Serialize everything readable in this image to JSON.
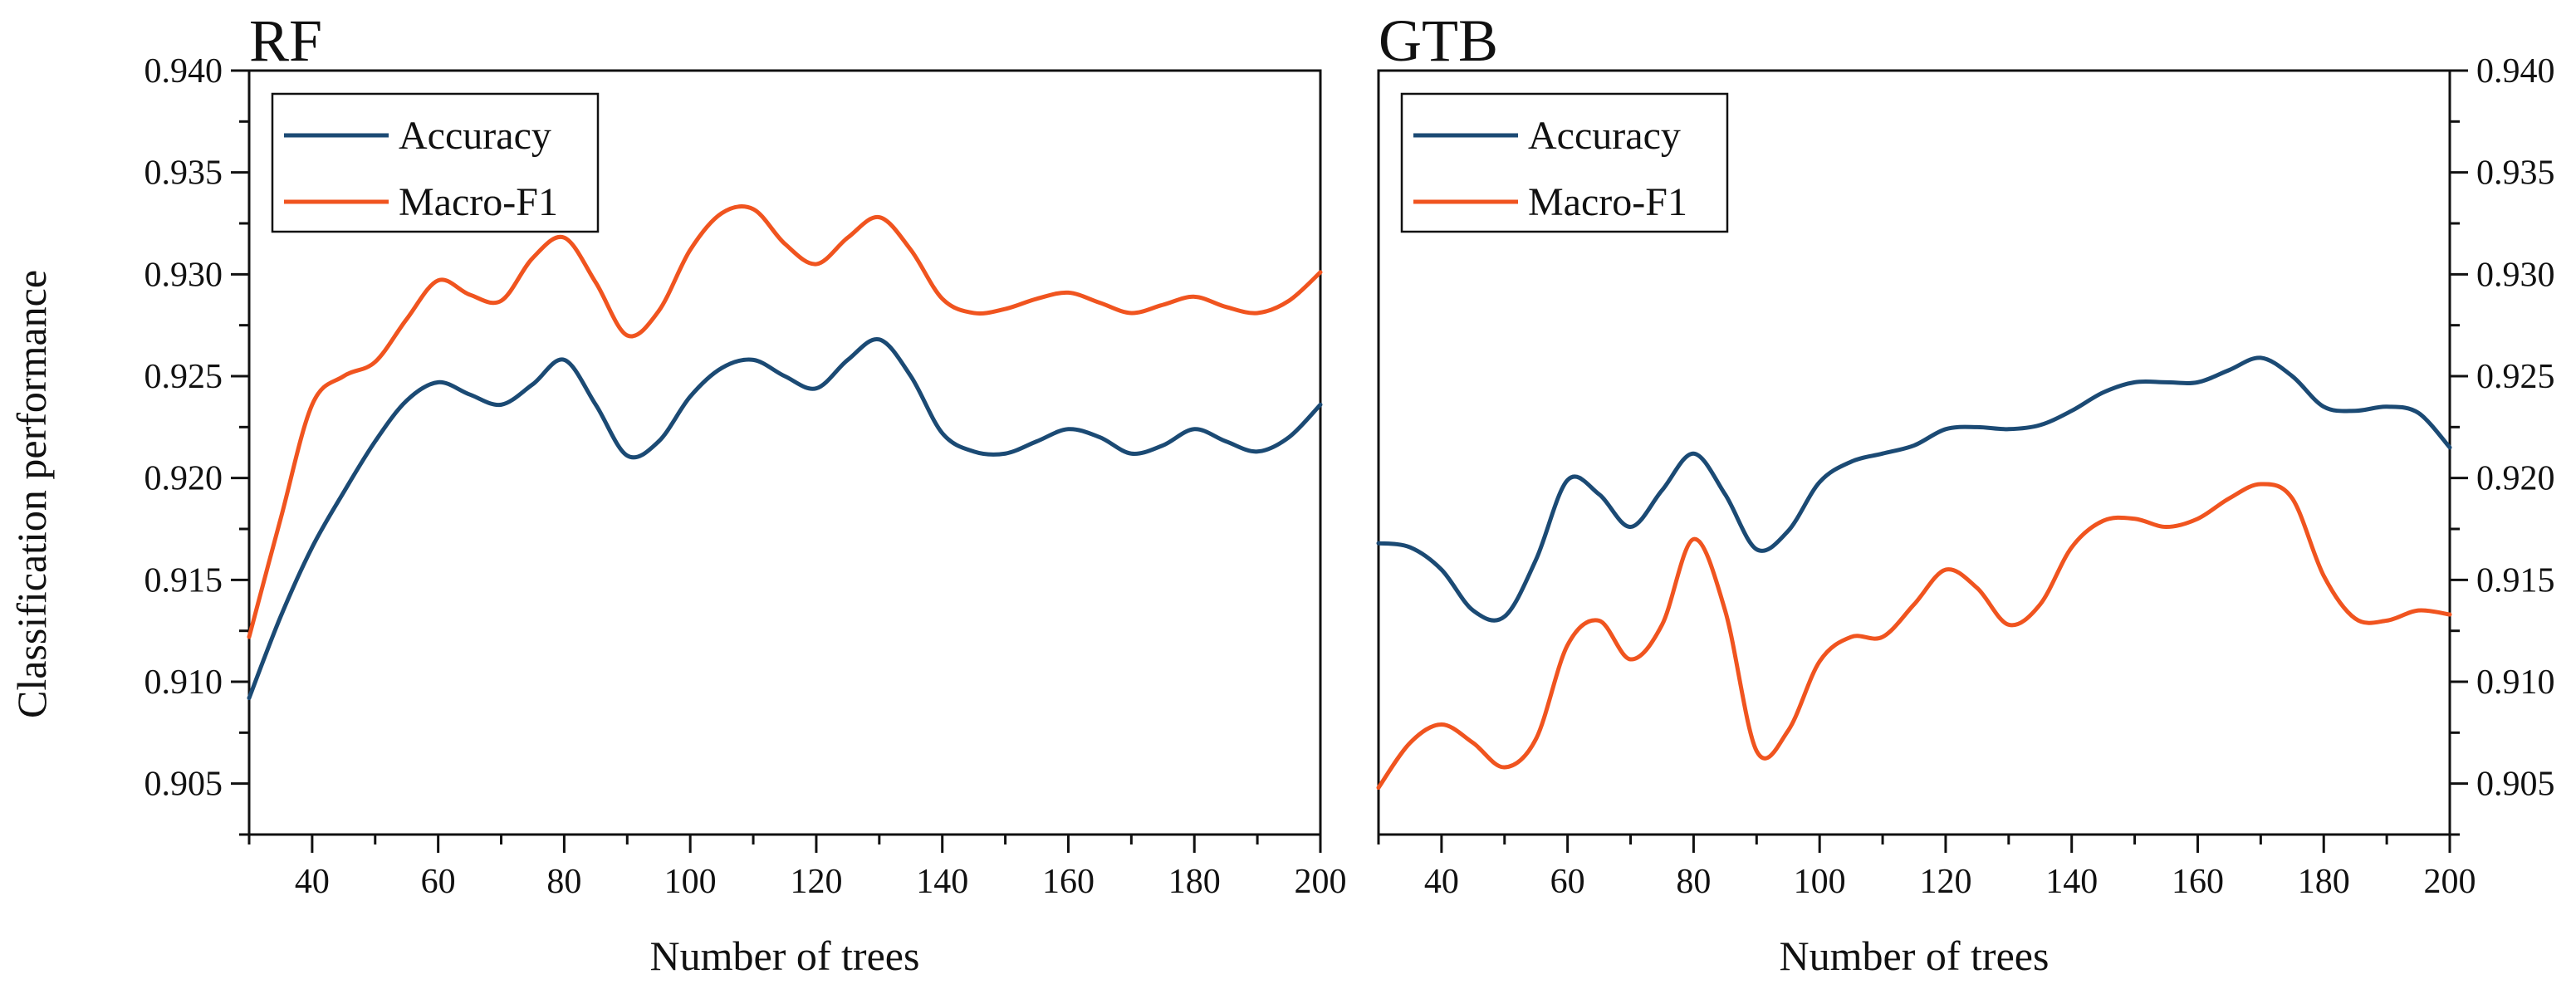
{
  "figure": {
    "ylabel": "Classification performance"
  },
  "colors": {
    "accuracy": "#1b4a74",
    "macro_f1": "#f0541f"
  },
  "chart_data": [
    {
      "type": "line",
      "title": "RF",
      "xlabel": "Number of trees",
      "ylabel": "Classification performance",
      "xlim": [
        30,
        200
      ],
      "ylim": [
        0.9025,
        0.94
      ],
      "xticks": [
        40,
        60,
        80,
        100,
        120,
        140,
        160,
        180,
        200
      ],
      "yticks": [
        0.905,
        0.91,
        0.915,
        0.92,
        0.925,
        0.93,
        0.935,
        0.94
      ],
      "ytick_labels": [
        "0.905",
        "0.910",
        "0.915",
        "0.920",
        "0.925",
        "0.930",
        "0.935",
        "0.940"
      ],
      "legend_position": "top-left",
      "series": [
        {
          "name": "Accuracy",
          "color": "#1b4a74",
          "x": [
            30,
            35,
            40,
            45,
            50,
            55,
            60,
            65,
            70,
            75,
            80,
            85,
            90,
            95,
            100,
            105,
            110,
            115,
            120,
            125,
            130,
            135,
            140,
            145,
            150,
            155,
            160,
            165,
            170,
            175,
            180,
            185,
            190,
            195,
            200
          ],
          "y": [
            0.9092,
            0.9132,
            0.9166,
            0.9193,
            0.9218,
            0.9238,
            0.9247,
            0.9241,
            0.9236,
            0.9246,
            0.9258,
            0.9236,
            0.9211,
            0.9218,
            0.924,
            0.9254,
            0.9258,
            0.925,
            0.9244,
            0.9258,
            0.9268,
            0.925,
            0.9222,
            0.9213,
            0.9212,
            0.9218,
            0.9224,
            0.922,
            0.9212,
            0.9216,
            0.9224,
            0.9218,
            0.9213,
            0.922,
            0.9236
          ]
        },
        {
          "name": "Macro-F1",
          "color": "#f0541f",
          "x": [
            30,
            35,
            40,
            45,
            50,
            55,
            60,
            65,
            70,
            75,
            80,
            85,
            90,
            95,
            100,
            105,
            110,
            115,
            120,
            125,
            130,
            135,
            140,
            145,
            150,
            155,
            160,
            165,
            170,
            175,
            180,
            185,
            190,
            195,
            200
          ],
          "y": [
            0.9122,
            0.918,
            0.9236,
            0.925,
            0.9257,
            0.9278,
            0.9297,
            0.929,
            0.9287,
            0.9308,
            0.9318,
            0.9296,
            0.927,
            0.9282,
            0.9312,
            0.933,
            0.9332,
            0.9315,
            0.9305,
            0.9318,
            0.9328,
            0.9312,
            0.9288,
            0.9281,
            0.9283,
            0.9288,
            0.9291,
            0.9286,
            0.9281,
            0.9285,
            0.9289,
            0.9284,
            0.9281,
            0.9287,
            0.9301
          ]
        }
      ]
    },
    {
      "type": "line",
      "title": "GTB",
      "xlabel": "Number of trees",
      "ylabel": "",
      "xlim": [
        30,
        200
      ],
      "ylim": [
        0.9025,
        0.94
      ],
      "xticks": [
        40,
        60,
        80,
        100,
        120,
        140,
        160,
        180,
        200
      ],
      "yticks": [
        0.905,
        0.91,
        0.915,
        0.92,
        0.925,
        0.93,
        0.935,
        0.94
      ],
      "ytick_labels": [
        "0.905",
        "0.910",
        "0.915",
        "0.920",
        "0.925",
        "0.930",
        "0.935",
        "0.940"
      ],
      "legend_position": "top-left",
      "series": [
        {
          "name": "Accuracy",
          "color": "#1b4a74",
          "x": [
            30,
            35,
            40,
            45,
            50,
            55,
            60,
            65,
            70,
            75,
            80,
            85,
            90,
            95,
            100,
            105,
            110,
            115,
            120,
            125,
            130,
            135,
            140,
            145,
            150,
            155,
            160,
            165,
            170,
            175,
            180,
            185,
            190,
            195,
            200
          ],
          "y": [
            0.9168,
            0.9166,
            0.9155,
            0.9135,
            0.9132,
            0.916,
            0.9199,
            0.9192,
            0.9176,
            0.9194,
            0.9212,
            0.9192,
            0.9165,
            0.9174,
            0.9198,
            0.9208,
            0.9212,
            0.9216,
            0.9224,
            0.9225,
            0.9224,
            0.9226,
            0.9233,
            0.9242,
            0.9247,
            0.9247,
            0.9247,
            0.9253,
            0.9259,
            0.925,
            0.9235,
            0.9233,
            0.9235,
            0.9232,
            0.9215
          ]
        },
        {
          "name": "Macro-F1",
          "color": "#f0541f",
          "x": [
            30,
            35,
            40,
            45,
            50,
            55,
            60,
            65,
            70,
            75,
            80,
            85,
            90,
            95,
            100,
            105,
            110,
            115,
            120,
            125,
            130,
            135,
            140,
            145,
            150,
            155,
            160,
            165,
            170,
            175,
            180,
            185,
            190,
            195,
            200
          ],
          "y": [
            0.9048,
            0.907,
            0.9079,
            0.907,
            0.9058,
            0.9072,
            0.9118,
            0.913,
            0.9111,
            0.9128,
            0.917,
            0.9135,
            0.9066,
            0.9076,
            0.911,
            0.9122,
            0.9122,
            0.9138,
            0.9155,
            0.9146,
            0.9128,
            0.9138,
            0.9166,
            0.9179,
            0.918,
            0.9176,
            0.918,
            0.919,
            0.9197,
            0.919,
            0.9152,
            0.9131,
            0.913,
            0.9135,
            0.9133
          ]
        }
      ]
    }
  ]
}
